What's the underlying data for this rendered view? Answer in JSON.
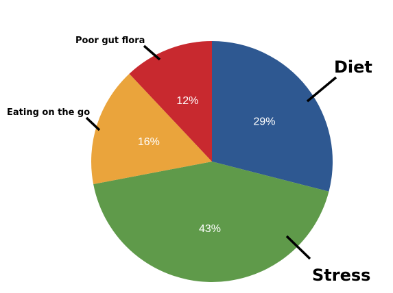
{
  "chart_data": {
    "type": "pie",
    "title": "",
    "slices": [
      {
        "label": "Diet",
        "value": 29,
        "display": "29%",
        "color": "#2e5891"
      },
      {
        "label": "Stress",
        "value": 43,
        "display": "43%",
        "color": "#5f9a4a"
      },
      {
        "label": "Eating on the go",
        "value": 16,
        "display": "16%",
        "color": "#eaa43c"
      },
      {
        "label": "Poor gut flora",
        "value": 12,
        "display": "12%",
        "color": "#c8292f"
      }
    ],
    "start": "12 o'clock",
    "direction": "clockwise",
    "legend": "none"
  }
}
